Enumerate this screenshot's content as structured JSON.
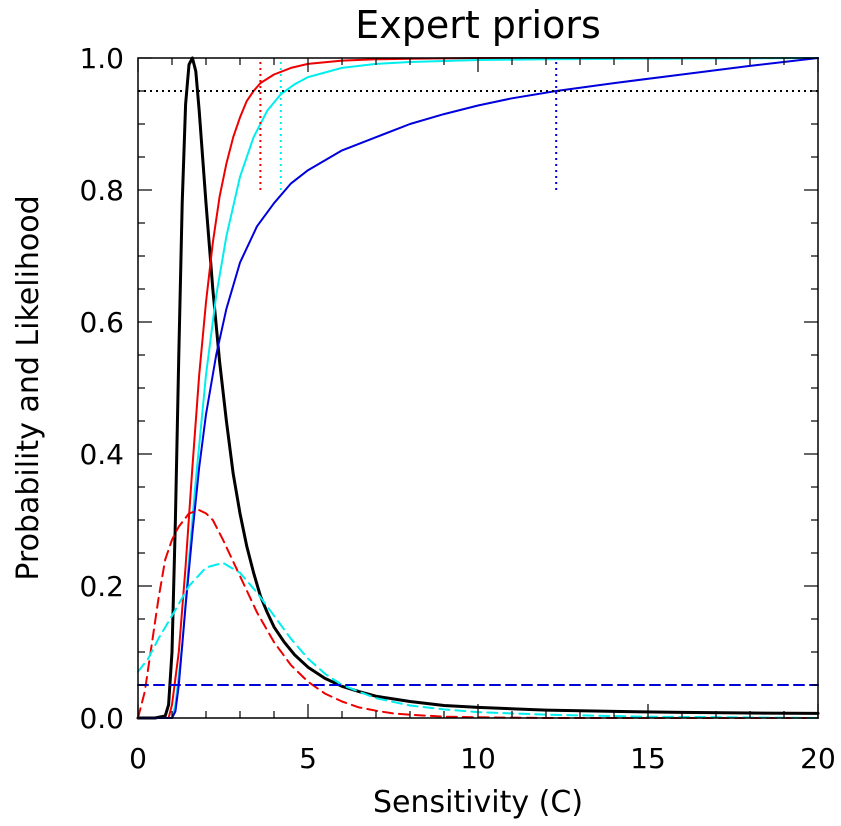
{
  "chart_data": {
    "type": "line",
    "title": "Expert priors",
    "xlabel": "Sensitivity (C)",
    "ylabel": "Probability and Likelihood",
    "xlim": [
      0,
      20
    ],
    "ylim": [
      0,
      1.0
    ],
    "x_ticks": [
      0,
      5,
      10,
      15,
      20
    ],
    "x_tick_labels": [
      "0",
      "5",
      "10",
      "15",
      "20"
    ],
    "y_ticks": [
      0.0,
      0.2,
      0.4,
      0.6,
      0.8,
      1.0
    ],
    "y_tick_labels": [
      "0.0",
      "0.2",
      "0.4",
      "0.6",
      "0.8",
      "1.0"
    ],
    "grid": false,
    "legend": "none",
    "series": [
      {
        "color": "#000000",
        "style": "solid",
        "width": 3,
        "x": [
          0,
          0.5,
          0.8,
          0.9,
          1.0,
          1.1,
          1.2,
          1.3,
          1.4,
          1.5,
          1.6,
          1.7,
          1.8,
          1.9,
          2.0,
          2.2,
          2.4,
          2.6,
          2.8,
          3.0,
          3.2,
          3.4,
          3.6,
          3.8,
          4.0,
          4.3,
          4.6,
          5.0,
          5.5,
          6.0,
          6.5,
          7.0,
          8.0,
          9.0,
          10.0,
          12.0,
          14.0,
          16.0,
          18.0,
          20.0
        ],
        "y": [
          0,
          0,
          0.003,
          0.02,
          0.1,
          0.3,
          0.55,
          0.78,
          0.93,
          0.99,
          1.0,
          0.98,
          0.92,
          0.85,
          0.78,
          0.65,
          0.54,
          0.45,
          0.37,
          0.31,
          0.26,
          0.22,
          0.185,
          0.16,
          0.138,
          0.115,
          0.096,
          0.077,
          0.06,
          0.048,
          0.04,
          0.033,
          0.025,
          0.019,
          0.016,
          0.012,
          0.01,
          0.0085,
          0.0075,
          0.007
        ]
      },
      {
        "color": "#ee0000",
        "style": "solid",
        "width": 2,
        "x": [
          0,
          0.9,
          1.0,
          1.2,
          1.4,
          1.6,
          1.8,
          2.0,
          2.2,
          2.4,
          2.6,
          2.8,
          3.0,
          3.2,
          3.4,
          3.6,
          4.0,
          4.5,
          5.0,
          6.0,
          7.0,
          8.0,
          10.0,
          15.0,
          20.0
        ],
        "y": [
          0,
          0,
          0.02,
          0.1,
          0.23,
          0.38,
          0.52,
          0.63,
          0.72,
          0.79,
          0.84,
          0.88,
          0.91,
          0.935,
          0.95,
          0.962,
          0.975,
          0.985,
          0.991,
          0.996,
          0.998,
          0.999,
          1.0,
          1.0,
          1.0
        ]
      },
      {
        "color": "#00eeee",
        "style": "solid",
        "width": 2,
        "x": [
          0,
          1.0,
          1.1,
          1.3,
          1.5,
          1.7,
          2.0,
          2.3,
          2.6,
          3.0,
          3.4,
          3.8,
          4.2,
          4.6,
          5.0,
          6.0,
          7.0,
          8.0,
          10.0,
          12.0,
          15.0,
          20.0
        ],
        "y": [
          0,
          0,
          0.02,
          0.11,
          0.24,
          0.36,
          0.52,
          0.64,
          0.73,
          0.82,
          0.88,
          0.92,
          0.945,
          0.96,
          0.971,
          0.985,
          0.991,
          0.994,
          0.997,
          0.998,
          0.999,
          1.0
        ]
      },
      {
        "color": "#0000dd",
        "style": "solid",
        "width": 2,
        "x": [
          0,
          1.0,
          1.1,
          1.2,
          1.4,
          1.6,
          1.8,
          2.0,
          2.3,
          2.6,
          3.0,
          3.5,
          4.0,
          4.5,
          5.0,
          6.0,
          7.0,
          8.0,
          9.0,
          10.0,
          11.0,
          12.3,
          14.0,
          16.0,
          18.0,
          20.0
        ],
        "y": [
          0,
          0,
          0.01,
          0.05,
          0.17,
          0.28,
          0.38,
          0.46,
          0.55,
          0.62,
          0.69,
          0.745,
          0.78,
          0.81,
          0.83,
          0.86,
          0.88,
          0.9,
          0.915,
          0.928,
          0.939,
          0.95,
          0.962,
          0.975,
          0.988,
          1.0
        ]
      },
      {
        "color": "#ee0000",
        "style": "dashed",
        "width": 2,
        "x": [
          0,
          0.2,
          0.4,
          0.6,
          0.8,
          1.0,
          1.2,
          1.5,
          1.8,
          2.0,
          2.2,
          2.5,
          3.0,
          3.5,
          4.0,
          4.5,
          5.0,
          5.5,
          6.0,
          6.5,
          7.0,
          7.5,
          8.0,
          9.0,
          10.0,
          12.0,
          15.0,
          20.0
        ],
        "y": [
          0.0,
          0.04,
          0.11,
          0.18,
          0.24,
          0.27,
          0.29,
          0.31,
          0.315,
          0.31,
          0.3,
          0.27,
          0.215,
          0.16,
          0.115,
          0.08,
          0.055,
          0.037,
          0.025,
          0.016,
          0.011,
          0.007,
          0.005,
          0.002,
          0.001,
          0.0,
          0.0,
          0.0
        ]
      },
      {
        "color": "#00eeee",
        "style": "dashed",
        "width": 2,
        "x": [
          0,
          0.3,
          0.6,
          1.0,
          1.5,
          2.0,
          2.5,
          3.0,
          3.5,
          4.0,
          4.5,
          5.0,
          5.5,
          6.0,
          7.0,
          8.0,
          9.0,
          10.0,
          12.0,
          15.0,
          20.0
        ],
        "y": [
          0.07,
          0.09,
          0.12,
          0.155,
          0.2,
          0.228,
          0.235,
          0.22,
          0.19,
          0.155,
          0.12,
          0.09,
          0.067,
          0.05,
          0.03,
          0.019,
          0.013,
          0.009,
          0.005,
          0.002,
          0.0
        ]
      },
      {
        "color": "#0000dd",
        "style": "dashed",
        "width": 2,
        "x": [
          0,
          20
        ],
        "y": [
          0.05,
          0.05
        ]
      }
    ],
    "reference_lines": [
      {
        "orientation": "horizontal",
        "value": 0.95,
        "color": "#000000",
        "style": "dotted"
      },
      {
        "orientation": "vertical",
        "value": 3.6,
        "from": 0.8,
        "to": 1.0,
        "color": "#ee0000",
        "style": "dotted"
      },
      {
        "orientation": "vertical",
        "value": 4.2,
        "from": 0.8,
        "to": 1.0,
        "color": "#00eeee",
        "style": "dotted"
      },
      {
        "orientation": "vertical",
        "value": 12.3,
        "from": 0.8,
        "to": 1.0,
        "color": "#0000dd",
        "style": "dotted"
      }
    ]
  }
}
